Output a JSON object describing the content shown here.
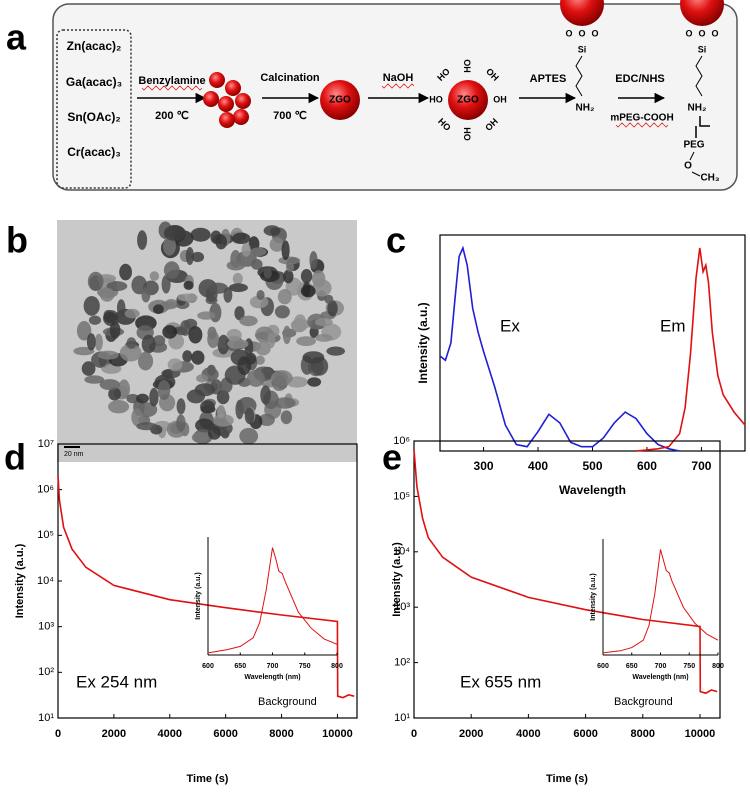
{
  "panel_labels": [
    "a",
    "b",
    "c",
    "d",
    "e"
  ],
  "scheme": {
    "precursors": [
      "Zn(acac)₂",
      "Ga(acac)₃",
      "Sn(OAc)₂",
      "Cr(acac)₃"
    ],
    "steps": [
      {
        "reagent": "Benzylamine",
        "condition": "200 ℃"
      },
      {
        "reagent": "Calcination",
        "condition": "700 ℃"
      },
      {
        "reagent": "NaOH"
      },
      {
        "reagent": "APTES"
      },
      {
        "reagent": "EDC/NHS",
        "condition": "mPEG-COOH"
      }
    ],
    "core": "ZGO",
    "hydroxyl_left": "HO",
    "hydroxyl_right": "OH",
    "linker": {
      "oxygen": "O",
      "silicon": "Si",
      "amine": "NH₂",
      "peg": "PEG",
      "methyl": "CH₃"
    }
  },
  "tem": {
    "scale_bar": "20 nm"
  },
  "chart_data": [
    {
      "type": "line",
      "xlabel": "Wavelength",
      "ylabel": "Intensity (a.u.)",
      "xlim": [
        220,
        780
      ],
      "ylim": [
        0,
        1
      ],
      "xticks": [
        300,
        400,
        500,
        600,
        700
      ],
      "series": [
        {
          "name": "Ex",
          "color": "#1f1fd6",
          "x": [
            220,
            230,
            240,
            248,
            255,
            262,
            270,
            280,
            290,
            300,
            320,
            340,
            360,
            380,
            400,
            420,
            440,
            460,
            480,
            500,
            520,
            540,
            560,
            580,
            600,
            620,
            640,
            660
          ],
          "values": [
            0.44,
            0.42,
            0.5,
            0.72,
            0.9,
            0.94,
            0.86,
            0.66,
            0.55,
            0.46,
            0.3,
            0.12,
            0.03,
            0.02,
            0.09,
            0.17,
            0.13,
            0.04,
            0.02,
            0.02,
            0.06,
            0.13,
            0.18,
            0.15,
            0.08,
            0.03,
            0.01,
            0.0
          ]
        },
        {
          "name": "Em",
          "color": "#e01010",
          "x": [
            580,
            600,
            620,
            640,
            660,
            670,
            680,
            690,
            697,
            703,
            708,
            713,
            720,
            730,
            740,
            760,
            780
          ],
          "values": [
            0.0,
            0.005,
            0.01,
            0.02,
            0.08,
            0.2,
            0.45,
            0.8,
            0.94,
            0.83,
            0.86,
            0.78,
            0.55,
            0.35,
            0.26,
            0.18,
            0.12
          ]
        }
      ]
    },
    {
      "type": "line",
      "xlabel": "Time (s)",
      "ylabel": "Intensity (a.u.)",
      "log_y": true,
      "xlim": [
        0,
        10700
      ],
      "ylim": [
        10,
        10000000
      ],
      "xticks": [
        0,
        2000,
        4000,
        6000,
        8000,
        10000
      ],
      "yticks": [
        {
          "value": 10,
          "label": "10¹"
        },
        {
          "value": 100,
          "label": "10²"
        },
        {
          "value": 1000,
          "label": "10³"
        },
        {
          "value": 10000,
          "label": "10⁴"
        },
        {
          "value": 100000,
          "label": "10⁵"
        },
        {
          "value": 1000000,
          "label": "10⁶"
        },
        {
          "value": 10000000,
          "label": "10⁷"
        }
      ],
      "annotation": "Background",
      "series": [
        {
          "name": "Ex 254 nm",
          "color": "#e01010",
          "x": [
            0,
            50,
            200,
            500,
            1000,
            2000,
            4000,
            6000,
            8000,
            10000,
            10010,
            10200,
            10400,
            10600
          ],
          "values": [
            2000000,
            600000,
            150000,
            50000,
            20000,
            8000,
            3900,
            2600,
            1800,
            1300,
            30,
            28,
            32,
            30
          ]
        }
      ]
    },
    {
      "type": "line",
      "xlabel": "Time (s)",
      "ylabel": "Intensity (a.u.)",
      "log_y": true,
      "xlim": [
        0,
        10700
      ],
      "ylim": [
        10,
        1000000
      ],
      "xticks": [
        0,
        2000,
        4000,
        6000,
        8000,
        10000
      ],
      "yticks": [
        {
          "value": 10,
          "label": "10¹"
        },
        {
          "value": 100,
          "label": "10²"
        },
        {
          "value": 1000,
          "label": "10³"
        },
        {
          "value": 10000,
          "label": "10⁴"
        },
        {
          "value": 100000,
          "label": "10⁵"
        },
        {
          "value": 1000000,
          "label": "10⁶"
        }
      ],
      "annotation": "Background",
      "series": [
        {
          "name": "Ex 655 nm",
          "color": "#e01010",
          "x": [
            0,
            100,
            300,
            500,
            1000,
            2000,
            4000,
            6000,
            8000,
            10000,
            10010,
            10200,
            10400,
            10600
          ],
          "values": [
            700000,
            150000,
            40000,
            18000,
            8000,
            3500,
            1500,
            900,
            600,
            450,
            30,
            28,
            32,
            30
          ]
        }
      ]
    },
    {
      "type": "line",
      "xlabel": "Wavelength (nm)",
      "ylabel": "Intensity (a.u.)",
      "xlim": [
        600,
        800
      ],
      "ylim": [
        0,
        1.1
      ],
      "xticks": [
        600,
        650,
        700,
        750,
        800
      ],
      "series": [
        {
          "color": "#e01010",
          "x": [
            600,
            630,
            650,
            670,
            680,
            690,
            700,
            705,
            710,
            715,
            720,
            740,
            760,
            780,
            800
          ],
          "values": [
            0.02,
            0.05,
            0.08,
            0.16,
            0.3,
            0.6,
            1.0,
            0.9,
            0.78,
            0.76,
            0.68,
            0.4,
            0.25,
            0.15,
            0.1
          ]
        }
      ]
    },
    {
      "type": "line",
      "xlabel": "Wavelength (nm)",
      "ylabel": "Intensity (a.u.)",
      "xlim": [
        600,
        800
      ],
      "ylim": [
        0,
        1.1
      ],
      "xticks": [
        600,
        650,
        700,
        750,
        800
      ],
      "series": [
        {
          "color": "#e01010",
          "x": [
            600,
            630,
            650,
            670,
            680,
            690,
            700,
            705,
            710,
            715,
            720,
            740,
            760,
            780,
            800
          ],
          "values": [
            0.02,
            0.04,
            0.07,
            0.14,
            0.28,
            0.58,
            1.0,
            0.9,
            0.8,
            0.78,
            0.7,
            0.45,
            0.3,
            0.2,
            0.14
          ]
        }
      ]
    }
  ]
}
